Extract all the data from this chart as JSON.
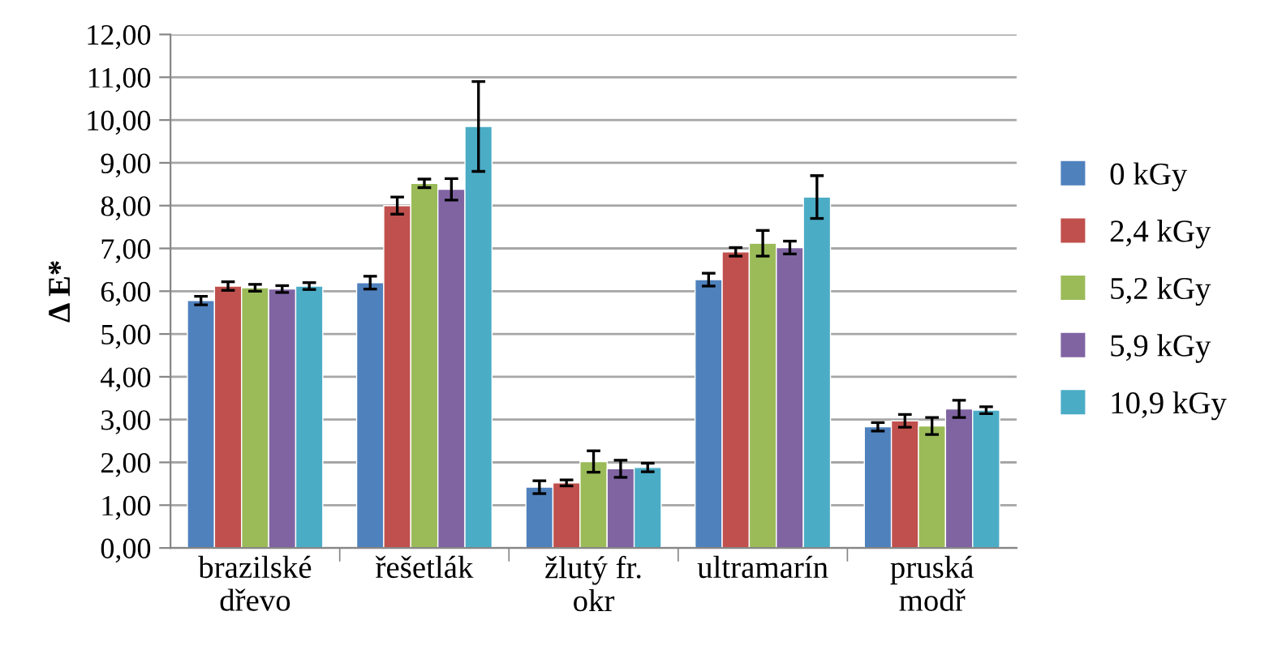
{
  "chart_data": {
    "type": "bar",
    "ylabel": "Δ E*",
    "categories": [
      "brazilské\ndřevo",
      "řešetlák",
      "žlutý fr.\nokr",
      "ultramarín",
      "pruská\nmodř"
    ],
    "series": [
      {
        "name": "0 kGy",
        "color": "#4f81bd",
        "values": [
          5.78,
          6.2,
          1.42,
          6.27,
          2.83
        ],
        "errors": [
          0.1,
          0.15,
          0.15,
          0.15,
          0.1
        ]
      },
      {
        "name": "2,4 kGy",
        "color": "#c0504d",
        "values": [
          6.12,
          8.0,
          1.52,
          6.92,
          2.97
        ],
        "errors": [
          0.1,
          0.2,
          0.07,
          0.1,
          0.15
        ]
      },
      {
        "name": "5,2 kGy",
        "color": "#9bbb59",
        "values": [
          6.08,
          8.52,
          2.02,
          7.12,
          2.85
        ],
        "errors": [
          0.08,
          0.1,
          0.25,
          0.3,
          0.2
        ]
      },
      {
        "name": "5,9 kGy",
        "color": "#8064a2",
        "values": [
          6.05,
          8.38,
          1.85,
          7.02,
          3.25
        ],
        "errors": [
          0.08,
          0.25,
          0.2,
          0.15,
          0.2
        ]
      },
      {
        "name": "10,9 kGy",
        "color": "#4bacc6",
        "values": [
          6.12,
          9.85,
          1.88,
          8.2,
          3.22
        ],
        "errors": [
          0.08,
          1.05,
          0.1,
          0.5,
          0.08
        ]
      }
    ],
    "ylim": [
      0,
      12
    ],
    "yticks": [
      {
        "value": 0,
        "label": "0,00"
      },
      {
        "value": 1,
        "label": "1,00"
      },
      {
        "value": 2,
        "label": "2,00"
      },
      {
        "value": 3,
        "label": "3,00"
      },
      {
        "value": 4,
        "label": "4,00"
      },
      {
        "value": 5,
        "label": "5,00"
      },
      {
        "value": 6,
        "label": "6,00"
      },
      {
        "value": 7,
        "label": "7,00"
      },
      {
        "value": 8,
        "label": "8,00"
      },
      {
        "value": 9,
        "label": "9,00"
      },
      {
        "value": 10,
        "label": "10,00"
      },
      {
        "value": 11,
        "label": "11,00"
      },
      {
        "value": 12,
        "label": "12,00"
      }
    ],
    "grid": "y",
    "legend": "right"
  }
}
